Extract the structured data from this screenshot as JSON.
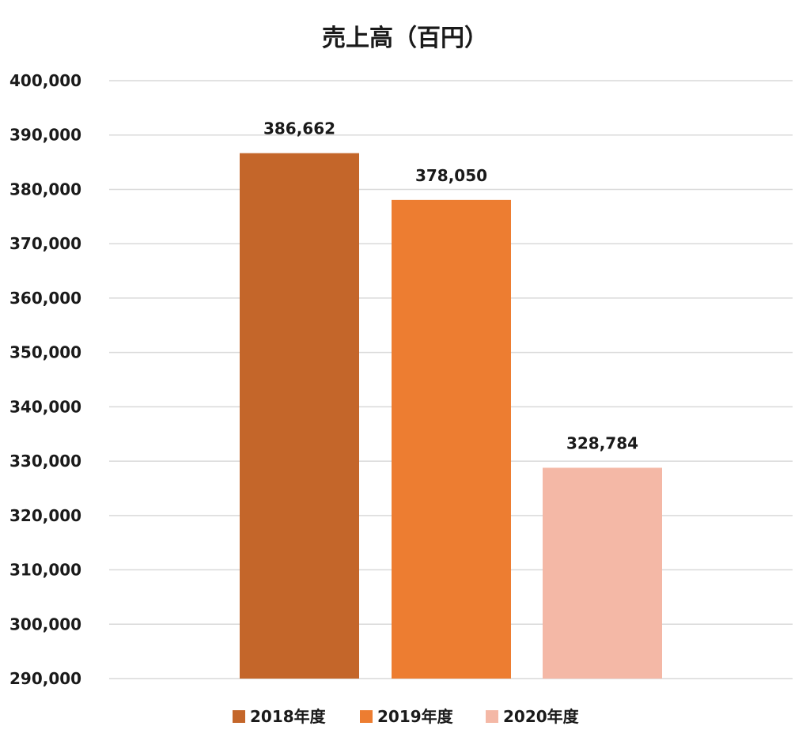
{
  "chart_data": {
    "type": "bar",
    "title": "売上高（百円）",
    "categories": [
      "2018年度",
      "2019年度",
      "2020年度"
    ],
    "values": [
      386662,
      378050,
      328784
    ],
    "value_labels": [
      "386,662",
      "378,050",
      "328,784"
    ],
    "colors": [
      "#C4662A",
      "#ED7D31",
      "#F4B8A6"
    ],
    "ylim": [
      290000,
      400000
    ],
    "yticks": [
      290000,
      300000,
      310000,
      320000,
      330000,
      340000,
      350000,
      360000,
      370000,
      380000,
      390000,
      400000
    ],
    "ytick_labels": [
      "290,000",
      "300,000",
      "310,000",
      "320,000",
      "330,000",
      "340,000",
      "350,000",
      "360,000",
      "370,000",
      "380,000",
      "390,000",
      "400,000"
    ],
    "grid": true,
    "legend_position": "bottom",
    "xlabel": "",
    "ylabel": ""
  }
}
